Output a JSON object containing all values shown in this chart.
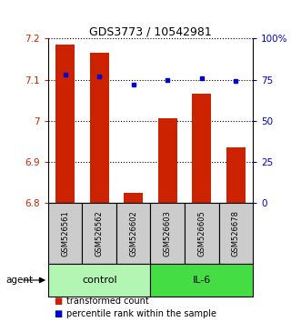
{
  "title": "GDS3773 / 10542981",
  "samples": [
    "GSM526561",
    "GSM526562",
    "GSM526602",
    "GSM526603",
    "GSM526605",
    "GSM526678"
  ],
  "bar_values": [
    7.185,
    7.165,
    6.825,
    7.005,
    7.065,
    6.935
  ],
  "percentile_values": [
    78,
    77,
    72,
    75,
    76,
    74
  ],
  "ylim_left": [
    6.8,
    7.2
  ],
  "ylim_right": [
    0,
    100
  ],
  "yticks_left": [
    6.8,
    6.9,
    7.0,
    7.1,
    7.2
  ],
  "ytick_labels_left": [
    "6.8",
    "6.9",
    "7",
    "7.1",
    "7.2"
  ],
  "yticks_right": [
    0,
    25,
    50,
    75,
    100
  ],
  "ytick_labels_right": [
    "0",
    "25",
    "50",
    "75",
    "100%"
  ],
  "groups": [
    {
      "label": "control",
      "indices": [
        0,
        1,
        2
      ],
      "color": "#b3f5b3"
    },
    {
      "label": "IL-6",
      "indices": [
        3,
        4,
        5
      ],
      "color": "#44dd44"
    }
  ],
  "bar_color": "#cc2200",
  "dot_color": "#0000cc",
  "bar_width": 0.55,
  "agent_label": "agent",
  "legend_items": [
    {
      "label": "transformed count",
      "color": "#cc2200"
    },
    {
      "label": "percentile rank within the sample",
      "color": "#0000cc"
    }
  ],
  "grid_color": "black",
  "grid_linestyle": "dotted",
  "sample_box_color": "#cccccc"
}
